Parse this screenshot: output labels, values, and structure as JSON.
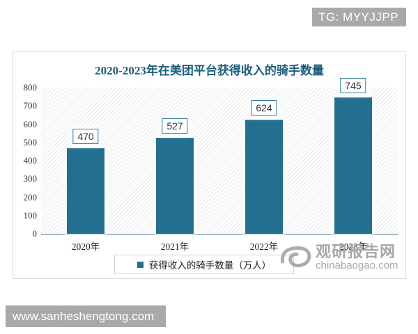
{
  "badges": {
    "tg": "TG: MYYJJPP",
    "site": "www.sanheshengtong.com"
  },
  "watermark": {
    "brand": "观研报告网",
    "domain": "chinabaogao.com"
  },
  "chart_data": {
    "type": "bar",
    "title": "2020-2023年在美团平台获得收入的骑手数量",
    "categories": [
      "2020年",
      "2021年",
      "2022年",
      "2023年"
    ],
    "values": [
      470,
      527,
      624,
      745
    ],
    "legend": "获得收入的骑手数量（万人）",
    "xlabel": "",
    "ylabel": "",
    "ylim": [
      0,
      800
    ],
    "yticks": [
      0,
      100,
      200,
      300,
      400,
      500,
      600,
      700,
      800
    ],
    "grid": false,
    "legend_position": "bottom",
    "bar_color": "#226f90",
    "title_color": "#1f5d7d",
    "value_label_border_color": "#2e7d9e",
    "plot_background": "diagonal-hatch"
  }
}
